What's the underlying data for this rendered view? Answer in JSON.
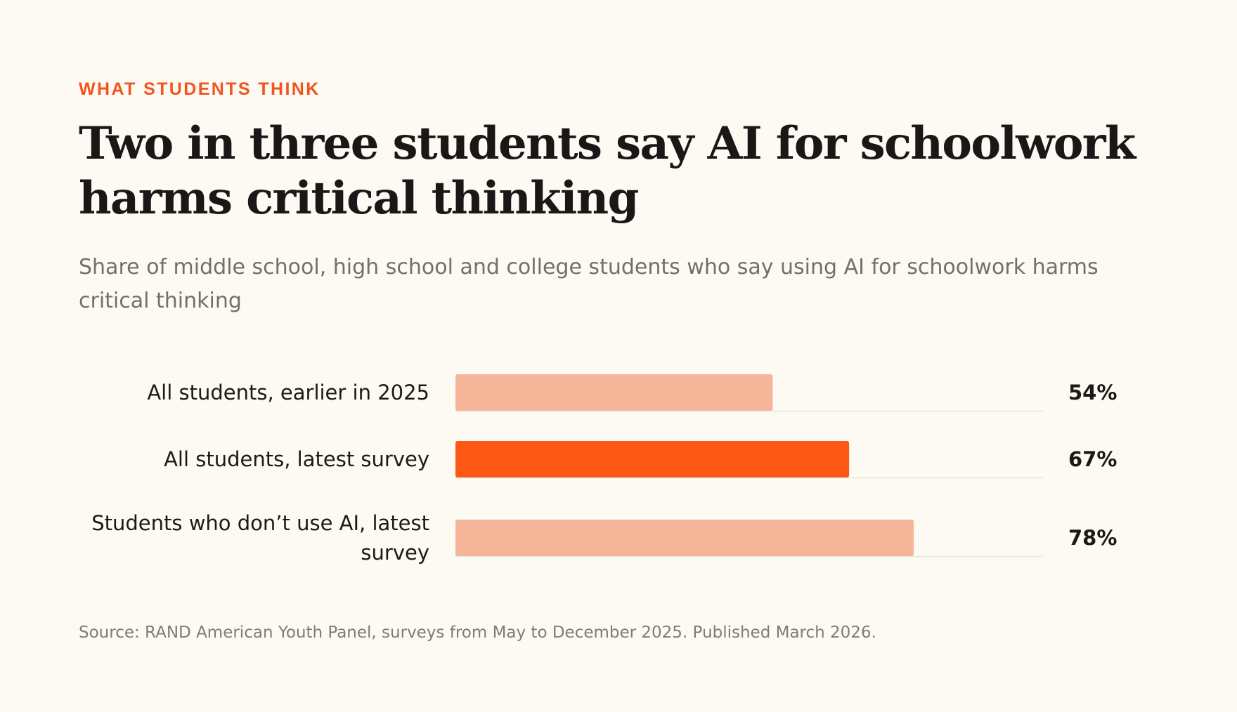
{
  "eyebrow": "WHAT STUDENTS THINK",
  "title": "Two in three students say AI for schoolwork harms critical thinking",
  "subtitle": "Share of middle school, high school and college students who say using AI for schoolwork harms critical thinking",
  "source": "Source: RAND American Youth Panel, surveys from May to December 2025. Published March 2026.",
  "colors": {
    "accent": "#fd5716",
    "muted_bar": "#f5b598",
    "track": "#ebe6dd"
  },
  "chart_data": {
    "type": "bar",
    "orientation": "horizontal",
    "categories": [
      [
        "All students, earlier in 2025"
      ],
      [
        "All students, latest survey"
      ],
      [
        "Students who don’t use AI, latest",
        "survey"
      ]
    ],
    "values": [
      54,
      67,
      78
    ],
    "value_labels": [
      "54%",
      "67%",
      "78%"
    ],
    "highlight_index": 1,
    "xlim": [
      0,
      100
    ],
    "grid": false
  }
}
